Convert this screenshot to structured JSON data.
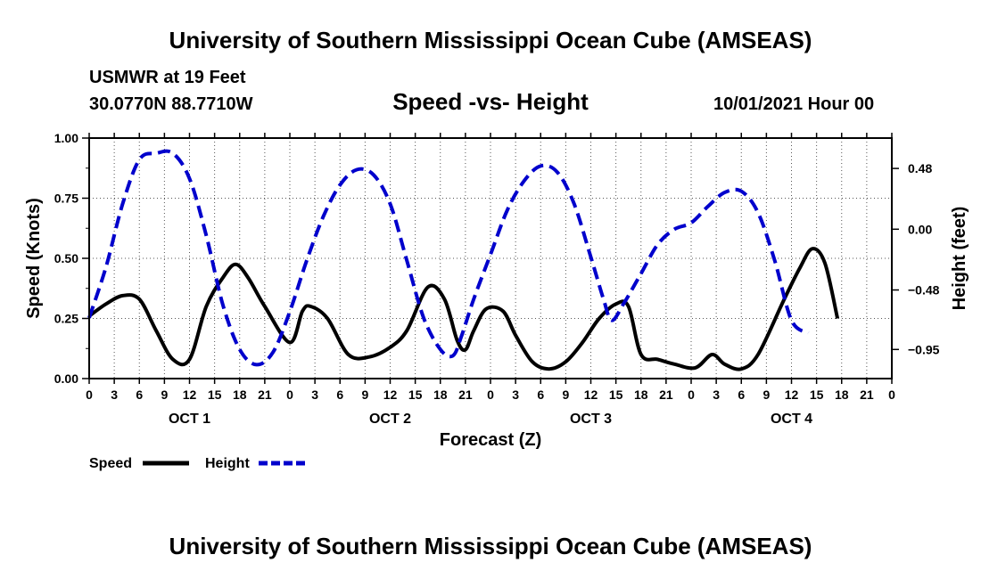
{
  "header": {
    "title": "University of Southern Mississippi Ocean Cube (AMSEAS)",
    "station": "USMWR at 19 Feet",
    "coordinates": "30.0770N  88.7710W",
    "chart_title": "Speed -vs- Height",
    "datetime": "10/01/2021 Hour 00"
  },
  "footer": {
    "title": "University of Southern Mississippi Ocean Cube (AMSEAS)"
  },
  "chart_data": {
    "type": "line",
    "title": "Speed -vs- Height",
    "xlabel": "Forecast (Z)",
    "ylabel": "Speed (Knots)",
    "y2label": "Height (feet)",
    "xlim": [
      0,
      96
    ],
    "ylim": [
      0,
      1.0
    ],
    "y2lim": [
      -1.18,
      0.72
    ],
    "yticks": [
      0.0,
      0.25,
      0.5,
      0.75,
      1.0
    ],
    "ytick_labels": [
      "0.00",
      "0.25",
      "0.50",
      "0.75",
      "1.00"
    ],
    "y2ticks": [
      0.48,
      0.0,
      -0.48,
      -0.95
    ],
    "y2tick_labels": [
      "0.48",
      "0.00",
      "−0.48",
      "−0.95"
    ],
    "xticks": [
      0,
      3,
      6,
      9,
      12,
      15,
      18,
      21,
      24,
      27,
      30,
      33,
      36,
      39,
      42,
      45,
      48,
      51,
      54,
      57,
      60,
      63,
      66,
      69,
      72,
      75,
      78,
      81,
      84,
      87,
      90,
      93,
      96
    ],
    "xtick_labels": [
      "0",
      "3",
      "6",
      "9",
      "12",
      "15",
      "18",
      "21",
      "0",
      "3",
      "6",
      "9",
      "12",
      "15",
      "18",
      "21",
      "0",
      "3",
      "6",
      "9",
      "12",
      "15",
      "18",
      "21",
      "0",
      "3",
      "6",
      "9",
      "12",
      "15",
      "18",
      "21",
      "0"
    ],
    "day_labels": [
      {
        "x": 12,
        "label": "OCT 1"
      },
      {
        "x": 36,
        "label": "OCT 2"
      },
      {
        "x": 60,
        "label": "OCT 3"
      },
      {
        "x": 84,
        "label": "OCT 4"
      }
    ],
    "legend": [
      {
        "label": "Speed",
        "color": "#000000",
        "style": "solid"
      },
      {
        "label": "Height",
        "color": "#0000cc",
        "style": "dashed"
      }
    ],
    "series": [
      {
        "name": "Speed",
        "axis": "left",
        "color": "#000000",
        "style": "solid",
        "points": [
          [
            0,
            0.26
          ],
          [
            2,
            0.31
          ],
          [
            4,
            0.345
          ],
          [
            6,
            0.33
          ],
          [
            8,
            0.2
          ],
          [
            10,
            0.08
          ],
          [
            12,
            0.08
          ],
          [
            14,
            0.3
          ],
          [
            16,
            0.42
          ],
          [
            17.5,
            0.475
          ],
          [
            19,
            0.42
          ],
          [
            21,
            0.3
          ],
          [
            24,
            0.15
          ],
          [
            25.5,
            0.28
          ],
          [
            26.5,
            0.3
          ],
          [
            28.5,
            0.25
          ],
          [
            31,
            0.1
          ],
          [
            33.5,
            0.09
          ],
          [
            36,
            0.13
          ],
          [
            38,
            0.2
          ],
          [
            40.5,
            0.38
          ],
          [
            42.5,
            0.33
          ],
          [
            44,
            0.16
          ],
          [
            45,
            0.12
          ],
          [
            46,
            0.2
          ],
          [
            47.5,
            0.29
          ],
          [
            49.5,
            0.28
          ],
          [
            51,
            0.18
          ],
          [
            53,
            0.07
          ],
          [
            55,
            0.04
          ],
          [
            57,
            0.07
          ],
          [
            59,
            0.15
          ],
          [
            61,
            0.25
          ],
          [
            63,
            0.31
          ],
          [
            64.5,
            0.3
          ],
          [
            66,
            0.1
          ],
          [
            68,
            0.08
          ],
          [
            70,
            0.06
          ],
          [
            72.5,
            0.045
          ],
          [
            74.5,
            0.1
          ],
          [
            76,
            0.06
          ],
          [
            78,
            0.04
          ],
          [
            80,
            0.1
          ],
          [
            83,
            0.32
          ],
          [
            85,
            0.46
          ],
          [
            86.5,
            0.54
          ],
          [
            88,
            0.48
          ],
          [
            89.5,
            0.25
          ]
        ]
      },
      {
        "name": "Height",
        "axis": "right",
        "color": "#0000cc",
        "style": "dashed",
        "points": [
          [
            0,
            -0.7
          ],
          [
            2,
            -0.3
          ],
          [
            4,
            0.2
          ],
          [
            6,
            0.55
          ],
          [
            8,
            0.6
          ],
          [
            10,
            0.6
          ],
          [
            12,
            0.4
          ],
          [
            14,
            -0.05
          ],
          [
            16,
            -0.6
          ],
          [
            18,
            -0.95
          ],
          [
            20,
            -1.07
          ],
          [
            22,
            -0.97
          ],
          [
            24,
            -0.65
          ],
          [
            26,
            -0.25
          ],
          [
            28,
            0.1
          ],
          [
            30,
            0.35
          ],
          [
            32,
            0.47
          ],
          [
            34,
            0.43
          ],
          [
            36,
            0.2
          ],
          [
            38,
            -0.25
          ],
          [
            40,
            -0.7
          ],
          [
            42,
            -0.95
          ],
          [
            43.5,
            -1.0
          ],
          [
            44.5,
            -0.85
          ],
          [
            46,
            -0.55
          ],
          [
            48,
            -0.2
          ],
          [
            50,
            0.15
          ],
          [
            52,
            0.38
          ],
          [
            54,
            0.5
          ],
          [
            56,
            0.45
          ],
          [
            58,
            0.2
          ],
          [
            60,
            -0.22
          ],
          [
            61.5,
            -0.55
          ],
          [
            62.5,
            -0.72
          ],
          [
            64,
            -0.58
          ],
          [
            66,
            -0.35
          ],
          [
            68,
            -0.12
          ],
          [
            70,
            0.0
          ],
          [
            72,
            0.05
          ],
          [
            74,
            0.18
          ],
          [
            76,
            0.29
          ],
          [
            78,
            0.3
          ],
          [
            80,
            0.13
          ],
          [
            82,
            -0.25
          ],
          [
            84,
            -0.72
          ],
          [
            86,
            -0.82
          ]
        ]
      }
    ]
  }
}
